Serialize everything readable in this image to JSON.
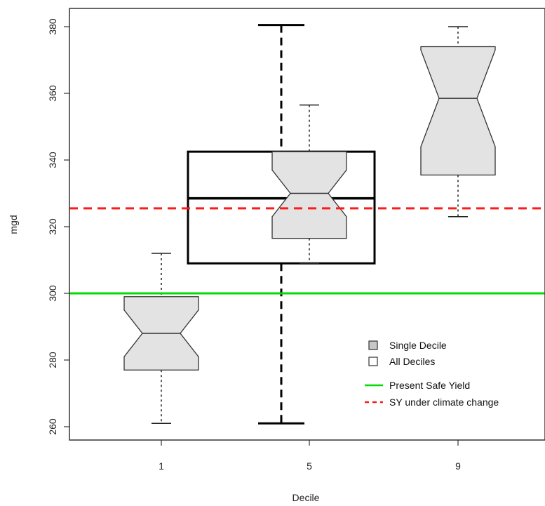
{
  "chart_data": {
    "type": "box",
    "xlabel": "Decile",
    "ylabel": "mgd",
    "ylim": [
      255,
      385
    ],
    "yticks": [
      260,
      280,
      300,
      320,
      340,
      360,
      380
    ],
    "categories": [
      "1",
      "5",
      "9"
    ],
    "series": [
      {
        "name": "Single Decile",
        "style": "notched",
        "fill": "#e3e3e3",
        "boxes": [
          {
            "category": "1",
            "whisker_low": 261,
            "q1": 277,
            "median": 288,
            "q3": 299,
            "whisker_high": 312,
            "notch_low": 281,
            "notch_high": 295
          },
          {
            "category": "5",
            "whisker_low": 309,
            "q1": 316.5,
            "median": 330,
            "q3": 342.5,
            "whisker_high": 356.5,
            "notch_low": 323,
            "notch_high": 337
          },
          {
            "category": "9",
            "whisker_low": 323,
            "q1": 335.5,
            "median": 358.5,
            "q3": 374,
            "whisker_high": 380,
            "notch_low": 344,
            "notch_high": 373
          }
        ]
      },
      {
        "name": "All Deciles",
        "style": "plain",
        "fill": "none",
        "boxes": [
          {
            "category": "5",
            "whisker_low": 261,
            "q1": 309,
            "median": 328.5,
            "q3": 342.5,
            "whisker_high": 380.5
          }
        ]
      }
    ],
    "reference_lines": [
      {
        "name": "Present Safe Yield",
        "y": 300,
        "color": "#00dd00",
        "dash": "solid"
      },
      {
        "name": "SY under climate change",
        "y": 325.5,
        "color": "#ff1a1a",
        "dash": "dashed"
      }
    ],
    "legend": {
      "placement": "bottom-right",
      "items": [
        {
          "label": "Single Decile",
          "symbol": "filled-box"
        },
        {
          "label": "All Deciles",
          "symbol": "empty-box"
        },
        {
          "label": "Present Safe Yield",
          "symbol": "green-line"
        },
        {
          "label": "SY under climate change",
          "symbol": "red-dashed-line"
        }
      ]
    },
    "grid": false
  }
}
